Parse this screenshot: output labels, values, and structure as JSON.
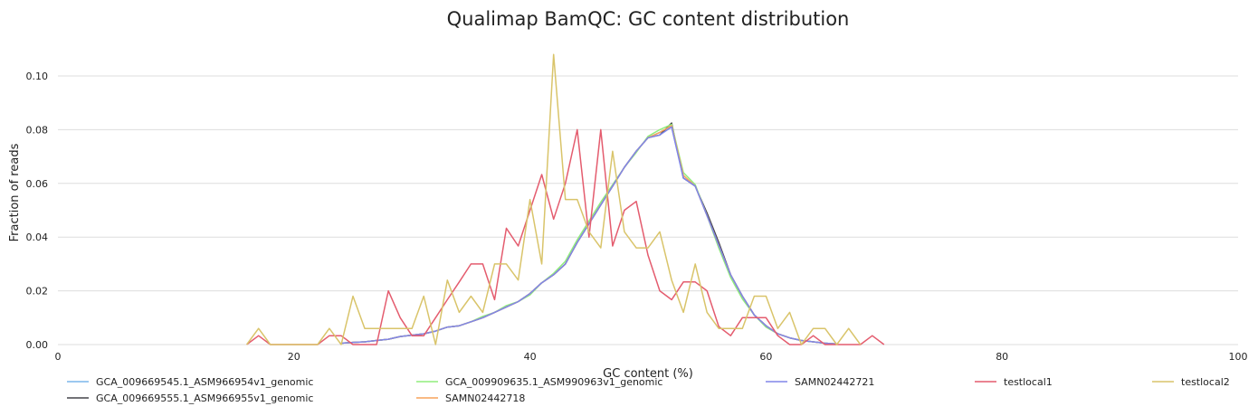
{
  "chart_data": {
    "type": "line",
    "title": "Qualimap BamQC: GC content distribution",
    "xlabel": "GC content (%)",
    "ylabel": "Fraction of reads",
    "xlim": [
      0,
      100
    ],
    "ylim": [
      0,
      0.11
    ],
    "xticks": [
      "0",
      "20",
      "40",
      "60",
      "80",
      "100"
    ],
    "yticks": [
      "0.00",
      "0.02",
      "0.04",
      "0.06",
      "0.08",
      "0.10"
    ],
    "grid": "horizontal",
    "legend_position": "bottom",
    "series": [
      {
        "name": "GCA_009669545.1_ASM966954v1_genomic",
        "color": "#7cb5ec",
        "x": [
          24,
          25,
          26,
          27,
          28,
          29,
          30,
          31,
          32,
          33,
          34,
          35,
          36,
          37,
          38,
          39,
          40,
          41,
          42,
          43,
          44,
          45,
          46,
          47,
          48,
          49,
          50,
          51,
          52,
          53,
          54,
          55,
          56,
          57,
          58,
          59,
          60,
          61,
          62,
          63,
          64,
          65,
          66
        ],
        "y": [
          0.0005,
          0.0008,
          0.001,
          0.0015,
          0.002,
          0.003,
          0.0035,
          0.004,
          0.005,
          0.0065,
          0.007,
          0.0085,
          0.01,
          0.012,
          0.014,
          0.016,
          0.019,
          0.023,
          0.026,
          0.03,
          0.038,
          0.045,
          0.052,
          0.059,
          0.066,
          0.072,
          0.077,
          0.079,
          0.081,
          0.062,
          0.059,
          0.048,
          0.037,
          0.026,
          0.018,
          0.011,
          0.007,
          0.004,
          0.0025,
          0.0015,
          0.001,
          0.0005,
          0.0002
        ]
      },
      {
        "name": "GCA_009669555.1_ASM966955v1_genomic",
        "color": "#434348",
        "x": [
          24,
          25,
          26,
          27,
          28,
          29,
          30,
          31,
          32,
          33,
          34,
          35,
          36,
          37,
          38,
          39,
          40,
          41,
          42,
          43,
          44,
          45,
          46,
          47,
          48,
          49,
          50,
          51,
          52,
          53,
          54,
          55,
          56,
          57,
          58,
          59,
          60,
          61,
          62,
          63,
          64,
          65,
          66
        ],
        "y": [
          0.0005,
          0.0008,
          0.001,
          0.0015,
          0.002,
          0.003,
          0.0035,
          0.004,
          0.005,
          0.0065,
          0.007,
          0.0085,
          0.01,
          0.012,
          0.014,
          0.016,
          0.019,
          0.023,
          0.026,
          0.03,
          0.038,
          0.045,
          0.052,
          0.059,
          0.066,
          0.072,
          0.077,
          0.078,
          0.0825,
          0.062,
          0.059,
          0.049,
          0.038,
          0.026,
          0.018,
          0.011,
          0.007,
          0.004,
          0.0025,
          0.0015,
          0.001,
          0.0005,
          0.0002
        ]
      },
      {
        "name": "GCA_009909635.1_ASM990963v1_genomic",
        "color": "#90ed7d",
        "x": [
          24,
          25,
          26,
          27,
          28,
          29,
          30,
          31,
          32,
          33,
          34,
          35,
          36,
          37,
          38,
          39,
          40,
          41,
          42,
          43,
          44,
          45,
          46,
          47,
          48,
          49,
          50,
          51,
          52,
          53,
          54,
          55,
          56,
          57,
          58,
          59,
          60,
          61,
          62,
          63,
          64,
          65,
          66
        ],
        "y": [
          0.0005,
          0.0008,
          0.001,
          0.0015,
          0.002,
          0.003,
          0.0035,
          0.004,
          0.005,
          0.0065,
          0.007,
          0.0085,
          0.0105,
          0.012,
          0.0145,
          0.016,
          0.0185,
          0.023,
          0.0265,
          0.031,
          0.039,
          0.046,
          0.053,
          0.0595,
          0.066,
          0.0715,
          0.0775,
          0.08,
          0.082,
          0.064,
          0.0595,
          0.048,
          0.036,
          0.025,
          0.017,
          0.011,
          0.0065,
          0.004,
          0.0025,
          0.0015,
          0.001,
          0.0005,
          0.0002
        ]
      },
      {
        "name": "SAMN02442718",
        "color": "#f7a35c",
        "x": [
          24,
          25,
          26,
          27,
          28,
          29,
          30,
          31,
          32,
          33,
          34,
          35,
          36,
          37,
          38,
          39,
          40,
          41,
          42,
          43,
          44,
          45,
          46,
          47,
          48,
          49,
          50,
          51,
          52,
          53,
          54,
          55,
          56,
          57,
          58,
          59,
          60,
          61,
          62,
          63,
          64,
          65,
          66
        ],
        "y": [
          0.0005,
          0.0008,
          0.001,
          0.0015,
          0.002,
          0.003,
          0.0035,
          0.004,
          0.005,
          0.0065,
          0.007,
          0.0085,
          0.01,
          0.012,
          0.014,
          0.016,
          0.019,
          0.023,
          0.026,
          0.03,
          0.038,
          0.045,
          0.052,
          0.059,
          0.066,
          0.072,
          0.077,
          0.079,
          0.0815,
          0.063,
          0.059,
          0.048,
          0.037,
          0.026,
          0.018,
          0.011,
          0.007,
          0.004,
          0.0025,
          0.0015,
          0.001,
          0.0005,
          0.0002
        ]
      },
      {
        "name": "SAMN02442721",
        "color": "#8085e9",
        "x": [
          24,
          25,
          26,
          27,
          28,
          29,
          30,
          31,
          32,
          33,
          34,
          35,
          36,
          37,
          38,
          39,
          40,
          41,
          42,
          43,
          44,
          45,
          46,
          47,
          48,
          49,
          50,
          51,
          52,
          53,
          54,
          55,
          56,
          57,
          58,
          59,
          60,
          61,
          62,
          63,
          64,
          65,
          66
        ],
        "y": [
          0.0005,
          0.0008,
          0.001,
          0.0015,
          0.002,
          0.003,
          0.0035,
          0.004,
          0.005,
          0.0065,
          0.007,
          0.0085,
          0.01,
          0.012,
          0.014,
          0.016,
          0.019,
          0.023,
          0.026,
          0.03,
          0.038,
          0.045,
          0.052,
          0.059,
          0.066,
          0.072,
          0.077,
          0.078,
          0.081,
          0.062,
          0.059,
          0.048,
          0.037,
          0.026,
          0.018,
          0.011,
          0.007,
          0.004,
          0.0025,
          0.0015,
          0.001,
          0.0005,
          0.0002
        ]
      },
      {
        "name": "testlocal1",
        "color": "#e45c6e",
        "x": [
          16,
          17,
          18,
          22,
          23,
          24,
          25,
          27,
          28,
          29,
          30,
          31,
          32,
          33,
          34,
          35,
          36,
          37,
          38,
          39,
          40,
          41,
          42,
          43,
          44,
          45,
          46,
          47,
          48,
          49,
          50,
          51,
          52,
          53,
          54,
          55,
          56,
          57,
          58,
          59,
          60,
          61,
          62,
          63,
          64,
          65,
          68,
          69,
          70
        ],
        "y": [
          0,
          0.0033,
          0,
          0,
          0.0033,
          0.0033,
          0,
          0,
          0.02,
          0.01,
          0.0033,
          0.0033,
          0.01,
          0.0167,
          0.0233,
          0.03,
          0.03,
          0.0167,
          0.0433,
          0.0367,
          0.05,
          0.0633,
          0.0467,
          0.06,
          0.08,
          0.04,
          0.08,
          0.0367,
          0.05,
          0.0533,
          0.0333,
          0.02,
          0.0167,
          0.0233,
          0.0233,
          0.02,
          0.0067,
          0.0033,
          0.01,
          0.01,
          0.01,
          0.0033,
          0,
          0,
          0.0033,
          0,
          0,
          0.0033,
          0
        ]
      },
      {
        "name": "testlocal2",
        "color": "#d9c46a",
        "x": [
          16,
          17,
          18,
          22,
          23,
          24,
          25,
          26,
          27,
          28,
          29,
          30,
          31,
          32,
          33,
          34,
          35,
          36,
          37,
          38,
          39,
          40,
          41,
          42,
          43,
          44,
          45,
          46,
          47,
          48,
          49,
          50,
          51,
          52,
          53,
          54,
          55,
          56,
          57,
          58,
          59,
          60,
          61,
          62,
          63,
          64,
          65,
          66,
          67,
          68
        ],
        "y": [
          0,
          0.006,
          0,
          0,
          0.006,
          0,
          0.018,
          0.006,
          0.006,
          0.006,
          0.006,
          0.006,
          0.018,
          0,
          0.024,
          0.012,
          0.018,
          0.012,
          0.03,
          0.03,
          0.024,
          0.054,
          0.03,
          0.108,
          0.054,
          0.054,
          0.042,
          0.036,
          0.072,
          0.042,
          0.036,
          0.036,
          0.042,
          0.024,
          0.012,
          0.03,
          0.012,
          0.006,
          0.006,
          0.006,
          0.018,
          0.018,
          0.006,
          0.012,
          0,
          0.006,
          0.006,
          0,
          0.006,
          0
        ]
      }
    ]
  }
}
